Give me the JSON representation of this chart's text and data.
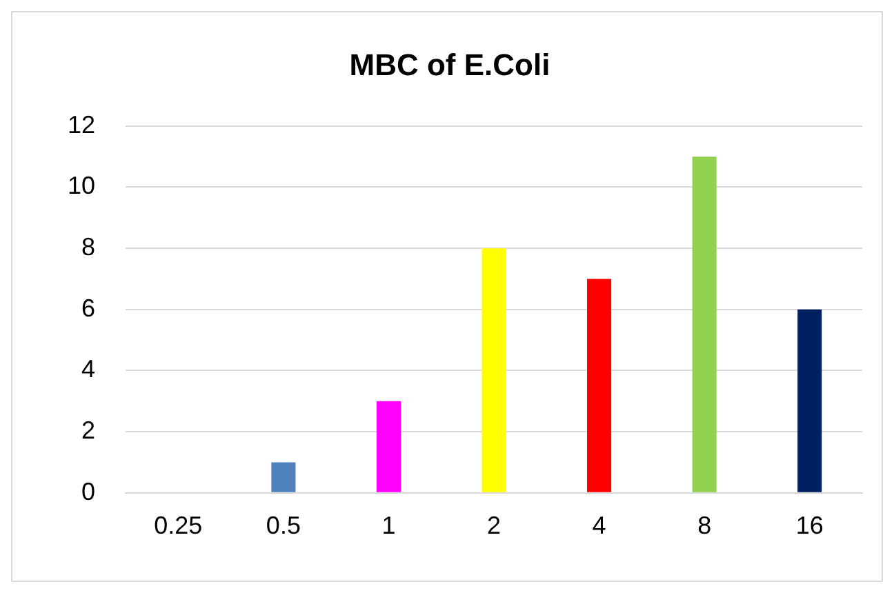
{
  "chart_data": {
    "type": "bar",
    "title": "MBC of E.Coli",
    "categories": [
      "0.25",
      "0.5",
      "1",
      "2",
      "4",
      "8",
      "16"
    ],
    "values": [
      0,
      1,
      3,
      8,
      7,
      11,
      6
    ],
    "colors": [
      "#4f81bd",
      "#4f81bd",
      "#ff00ff",
      "#ffff00",
      "#ff0000",
      "#92d050",
      "#002060"
    ],
    "ylim": [
      0,
      12
    ],
    "yticks": [
      0,
      2,
      4,
      6,
      8,
      10,
      12
    ],
    "grid": "y",
    "legend": false
  }
}
